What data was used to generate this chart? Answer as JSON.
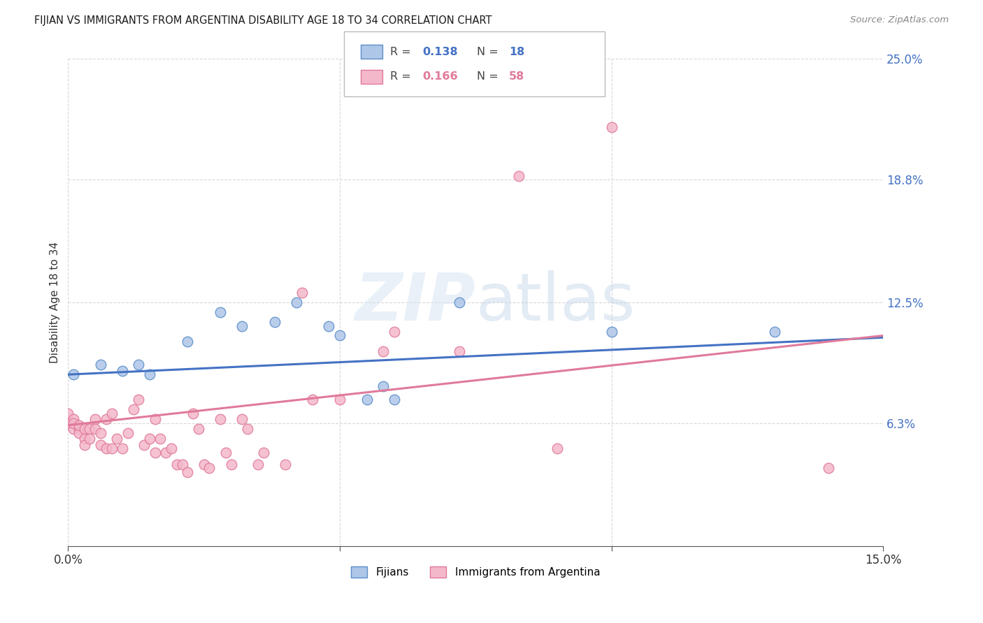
{
  "title": "FIJIAN VS IMMIGRANTS FROM ARGENTINA DISABILITY AGE 18 TO 34 CORRELATION CHART",
  "source": "Source: ZipAtlas.com",
  "ylabel_label": "Disability Age 18 to 34",
  "xlim": [
    0.0,
    0.15
  ],
  "ylim": [
    0.0,
    0.25
  ],
  "ytick_labels_right": [
    "6.3%",
    "12.5%",
    "18.8%",
    "25.0%"
  ],
  "ytick_vals_right": [
    0.063,
    0.125,
    0.188,
    0.25
  ],
  "watermark": "ZIPatlas",
  "fijian_R": "0.138",
  "fijian_N": "18",
  "argentina_R": "0.166",
  "argentina_N": "58",
  "fijian_color": "#aec6e8",
  "argentina_color": "#f4b8cb",
  "fijian_edge_color": "#5b8ec9",
  "argentina_edge_color": "#e07a9a",
  "fijian_line_color": "#4472c4",
  "argentina_line_color": "#e07a9a",
  "legend_text_color_blue": "#4472c4",
  "legend_text_color_pink": "#e07a9a",
  "fijian_scatter": [
    [
      0.001,
      0.088
    ],
    [
      0.006,
      0.093
    ],
    [
      0.01,
      0.09
    ],
    [
      0.013,
      0.093
    ],
    [
      0.015,
      0.088
    ],
    [
      0.022,
      0.105
    ],
    [
      0.028,
      0.12
    ],
    [
      0.032,
      0.113
    ],
    [
      0.038,
      0.115
    ],
    [
      0.042,
      0.125
    ],
    [
      0.048,
      0.113
    ],
    [
      0.05,
      0.108
    ],
    [
      0.055,
      0.075
    ],
    [
      0.058,
      0.082
    ],
    [
      0.06,
      0.075
    ],
    [
      0.072,
      0.125
    ],
    [
      0.1,
      0.11
    ],
    [
      0.13,
      0.11
    ]
  ],
  "argentina_scatter": [
    [
      0.0,
      0.063
    ],
    [
      0.0,
      0.068
    ],
    [
      0.001,
      0.06
    ],
    [
      0.001,
      0.065
    ],
    [
      0.001,
      0.063
    ],
    [
      0.002,
      0.06
    ],
    [
      0.002,
      0.058
    ],
    [
      0.002,
      0.062
    ],
    [
      0.003,
      0.06
    ],
    [
      0.003,
      0.055
    ],
    [
      0.003,
      0.052
    ],
    [
      0.004,
      0.06
    ],
    [
      0.004,
      0.055
    ],
    [
      0.005,
      0.065
    ],
    [
      0.005,
      0.06
    ],
    [
      0.006,
      0.058
    ],
    [
      0.006,
      0.052
    ],
    [
      0.007,
      0.065
    ],
    [
      0.007,
      0.05
    ],
    [
      0.008,
      0.068
    ],
    [
      0.008,
      0.05
    ],
    [
      0.009,
      0.055
    ],
    [
      0.01,
      0.05
    ],
    [
      0.011,
      0.058
    ],
    [
      0.012,
      0.07
    ],
    [
      0.013,
      0.075
    ],
    [
      0.014,
      0.052
    ],
    [
      0.015,
      0.055
    ],
    [
      0.016,
      0.065
    ],
    [
      0.016,
      0.048
    ],
    [
      0.017,
      0.055
    ],
    [
      0.018,
      0.048
    ],
    [
      0.019,
      0.05
    ],
    [
      0.02,
      0.042
    ],
    [
      0.021,
      0.042
    ],
    [
      0.022,
      0.038
    ],
    [
      0.023,
      0.068
    ],
    [
      0.024,
      0.06
    ],
    [
      0.025,
      0.042
    ],
    [
      0.026,
      0.04
    ],
    [
      0.028,
      0.065
    ],
    [
      0.029,
      0.048
    ],
    [
      0.03,
      0.042
    ],
    [
      0.032,
      0.065
    ],
    [
      0.033,
      0.06
    ],
    [
      0.035,
      0.042
    ],
    [
      0.036,
      0.048
    ],
    [
      0.04,
      0.042
    ],
    [
      0.043,
      0.13
    ],
    [
      0.045,
      0.075
    ],
    [
      0.05,
      0.075
    ],
    [
      0.058,
      0.1
    ],
    [
      0.06,
      0.11
    ],
    [
      0.072,
      0.1
    ],
    [
      0.083,
      0.19
    ],
    [
      0.09,
      0.05
    ],
    [
      0.1,
      0.215
    ],
    [
      0.14,
      0.04
    ]
  ],
  "background_color": "#ffffff",
  "grid_color": "#d8d8d8"
}
